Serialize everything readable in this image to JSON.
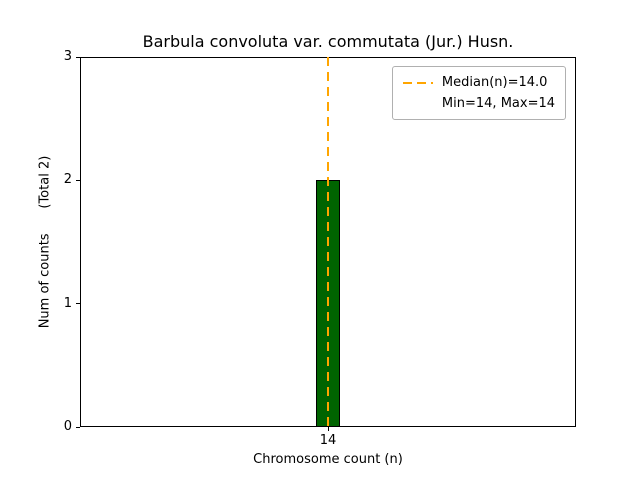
{
  "chart_data": {
    "type": "bar",
    "title": "Barbula convoluta var. commutata (Jur.) Husn.",
    "xlabel": "Chromosome count (n)",
    "ylabel": "Num of counts      (Total 2)",
    "categories": [
      "14"
    ],
    "values": [
      2
    ],
    "ylim": [
      0,
      3
    ],
    "yticks": [
      0,
      1,
      2,
      3
    ],
    "legend": [
      "Median(n)=14.0",
      "Min=14, Max=14"
    ],
    "median": 14.0,
    "min": 14,
    "max": 14,
    "total": 2,
    "bar_color": "#006400",
    "bar_edge_color": "#000000",
    "median_line_color": "#FFA500",
    "layout": {
      "legend_position": "upper right",
      "grid": false,
      "bar_center_fraction": 0.5,
      "bar_width_fraction": 0.05
    }
  }
}
